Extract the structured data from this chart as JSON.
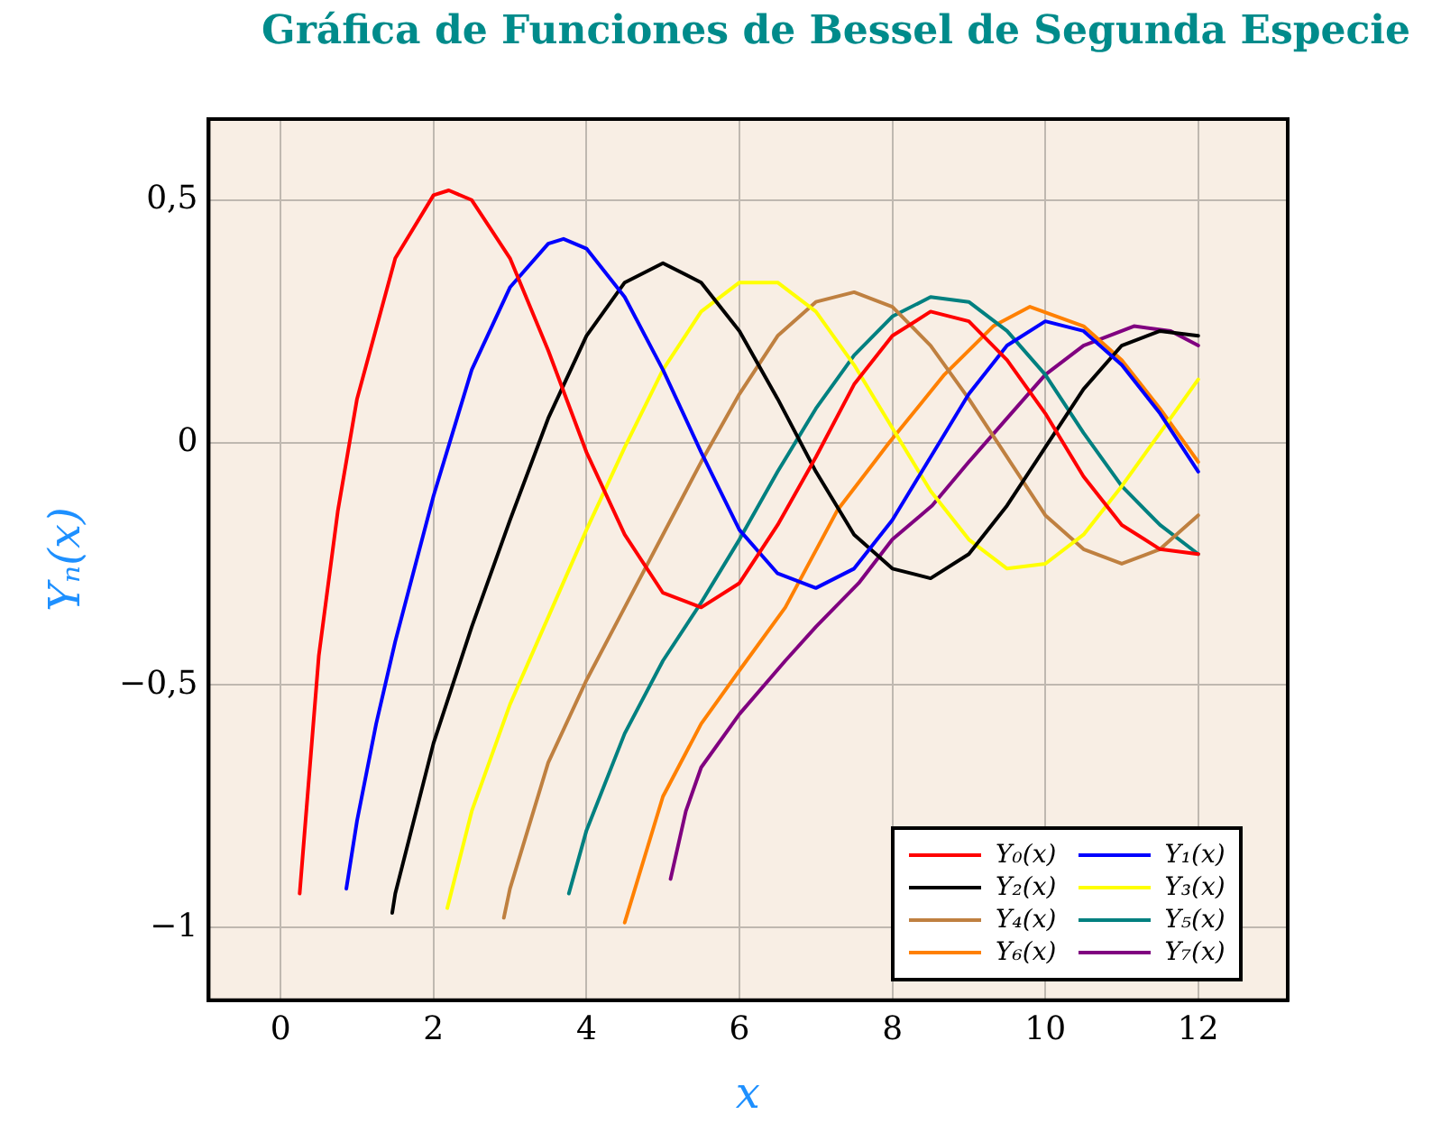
{
  "chart_data": {
    "type": "line",
    "title": "Gráfica de Funciones de Bessel de Segunda Especie",
    "xlabel": "x",
    "ylabel": "Yₙ(x)",
    "xlim": [
      -0.94,
      13.17
    ],
    "ylim": [
      -1.15,
      0.667
    ],
    "xticks": [
      0,
      2,
      4,
      6,
      8,
      10,
      12
    ],
    "yticks": [
      {
        "value": -1,
        "label": "−1"
      },
      {
        "value": -0.5,
        "label": "−0,5"
      },
      0,
      {
        "value": 0.5,
        "label": "0,5"
      }
    ],
    "grid": true,
    "legend": "bottom right",
    "marker": "none",
    "line_style": "solid",
    "series": [
      {
        "name": "Y₀(x)",
        "color": "#ff0000",
        "x": [
          0.25,
          0.5,
          0.75,
          1,
          1.5,
          2,
          2.2,
          2.5,
          3,
          3.5,
          4,
          4.5,
          5,
          5.5,
          6,
          6.5,
          7,
          7.5,
          8,
          8.5,
          9,
          9.5,
          10,
          10.5,
          11,
          11.5,
          12
        ],
        "values": [
          -0.93,
          -0.44,
          -0.14,
          0.09,
          0.38,
          0.51,
          0.52,
          0.5,
          0.38,
          0.19,
          -0.02,
          -0.19,
          -0.31,
          -0.34,
          -0.29,
          -0.17,
          -0.03,
          0.12,
          0.22,
          0.27,
          0.25,
          0.17,
          0.06,
          -0.07,
          -0.17,
          -0.22,
          -0.23
        ]
      },
      {
        "name": "Y₁(x)",
        "color": "#0000ff",
        "x": [
          0.86,
          1,
          1.25,
          1.5,
          2,
          2.5,
          3,
          3.5,
          3.7,
          4,
          4.5,
          5,
          5.5,
          6,
          6.5,
          7,
          7.5,
          8,
          8.5,
          9,
          9.5,
          10,
          10.5,
          11,
          11.5,
          12
        ],
        "values": [
          -0.92,
          -0.78,
          -0.58,
          -0.41,
          -0.11,
          0.15,
          0.32,
          0.41,
          0.42,
          0.4,
          0.3,
          0.15,
          -0.02,
          -0.18,
          -0.27,
          -0.3,
          -0.26,
          -0.16,
          -0.03,
          0.1,
          0.2,
          0.25,
          0.23,
          0.16,
          0.06,
          -0.06
        ]
      },
      {
        "name": "Y₂(x)",
        "color": "#000000",
        "x": [
          1.46,
          1.5,
          2,
          2.5,
          3,
          3.5,
          4,
          4.5,
          5,
          5.5,
          6,
          6.5,
          7,
          7.5,
          8,
          8.5,
          9,
          9.5,
          10,
          10.5,
          11,
          11.5,
          12
        ],
        "values": [
          -0.97,
          -0.93,
          -0.62,
          -0.38,
          -0.16,
          0.05,
          0.22,
          0.33,
          0.37,
          0.33,
          0.23,
          0.09,
          -0.06,
          -0.19,
          -0.26,
          -0.28,
          -0.23,
          -0.13,
          -0.01,
          0.11,
          0.2,
          0.23,
          0.22
        ]
      },
      {
        "name": "Y₃(x)",
        "color": "#ffff00",
        "x": [
          2.18,
          2.5,
          3,
          3.5,
          4,
          4.5,
          5,
          5.5,
          6,
          6.25,
          6.5,
          7,
          7.5,
          8,
          8.5,
          9,
          9.5,
          10,
          10.5,
          11,
          11.5,
          12
        ],
        "values": [
          -0.96,
          -0.76,
          -0.54,
          -0.36,
          -0.18,
          -0.01,
          0.15,
          0.27,
          0.33,
          0.33,
          0.33,
          0.27,
          0.16,
          0.03,
          -0.1,
          -0.2,
          -0.26,
          -0.25,
          -0.19,
          -0.09,
          0.02,
          0.13
        ]
      },
      {
        "name": "Y₄(x)",
        "color": "#bf8040",
        "x": [
          2.92,
          3,
          3.5,
          4,
          4.5,
          5,
          5.5,
          6,
          6.5,
          7,
          7.5,
          8,
          8.5,
          9,
          9.5,
          10,
          10.5,
          11,
          11.5,
          12
        ],
        "values": [
          -0.98,
          -0.92,
          -0.66,
          -0.49,
          -0.34,
          -0.19,
          -0.04,
          0.1,
          0.22,
          0.29,
          0.31,
          0.28,
          0.2,
          0.09,
          -0.03,
          -0.15,
          -0.22,
          -0.25,
          -0.22,
          -0.15
        ]
      },
      {
        "name": "Y₅(x)",
        "color": "#008080",
        "x": [
          3.77,
          4,
          4.5,
          5,
          5.5,
          6,
          6.5,
          7,
          7.5,
          8,
          8.5,
          9,
          9.5,
          10,
          10.5,
          11,
          11.5,
          12
        ],
        "values": [
          -0.93,
          -0.8,
          -0.6,
          -0.45,
          -0.33,
          -0.2,
          -0.06,
          0.07,
          0.18,
          0.26,
          0.3,
          0.29,
          0.23,
          0.14,
          0.02,
          -0.09,
          -0.17,
          -0.23
        ]
      },
      {
        "name": "Y₆(x)",
        "color": "#ff8000",
        "x": [
          4.5,
          5,
          5.5,
          6,
          6.6,
          7.28,
          7.96,
          8.68,
          9.32,
          9.8,
          10.5,
          11,
          11.5,
          12
        ],
        "values": [
          -0.99,
          -0.73,
          -0.58,
          -0.47,
          -0.34,
          -0.14,
          0,
          0.14,
          0.24,
          0.28,
          0.24,
          0.17,
          0.07,
          -0.04
        ]
      },
      {
        "name": "Y₇(x)",
        "color": "#800080",
        "x": [
          5.1,
          5.3,
          5.5,
          6,
          6.6,
          7,
          7.56,
          8,
          8.52,
          9,
          9.5,
          10,
          10.5,
          11.16,
          11.64,
          12
        ],
        "values": [
          -0.9,
          -0.76,
          -0.67,
          -0.56,
          -0.45,
          -0.38,
          -0.29,
          -0.2,
          -0.13,
          -0.04,
          0.05,
          0.14,
          0.2,
          0.24,
          0.23,
          0.2
        ]
      }
    ]
  }
}
